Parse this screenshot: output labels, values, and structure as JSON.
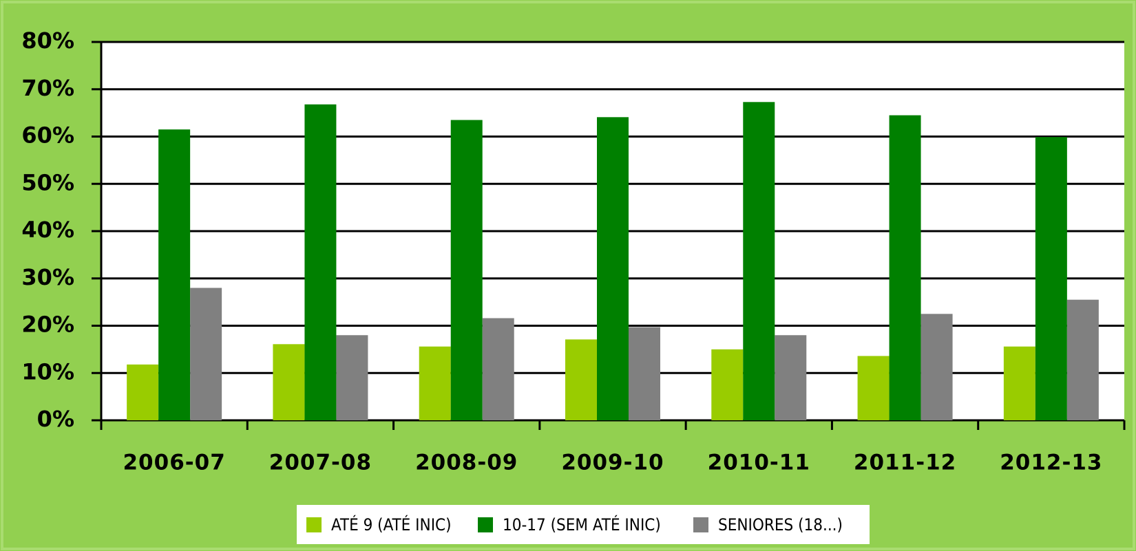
{
  "chart_data": {
    "type": "bar",
    "categories": [
      "2006-07",
      "2007-08",
      "2008-09",
      "2009-10",
      "2010-11",
      "2011-12",
      "2012-13"
    ],
    "series": [
      {
        "name": "ATÉ 9 (ATÉ INIC)",
        "color": "#99cc00",
        "values": [
          11.8,
          16.1,
          15.6,
          17.1,
          15.0,
          13.6,
          15.6
        ]
      },
      {
        "name": "10-17 (SEM ATÉ INIC)",
        "color": "#008000",
        "values": [
          61.5,
          66.8,
          63.5,
          64.1,
          67.3,
          64.5,
          59.9
        ]
      },
      {
        "name": "SENIORES (18...)",
        "color": "#808080",
        "values": [
          28.0,
          18.0,
          21.6,
          19.7,
          18.0,
          22.5,
          25.5
        ]
      }
    ],
    "ylim": [
      0,
      80
    ],
    "yticks": [
      {
        "value": 0,
        "label": "0%"
      },
      {
        "value": 10,
        "label": "10%"
      },
      {
        "value": 20,
        "label": "20%"
      },
      {
        "value": 30,
        "label": "30%"
      },
      {
        "value": 40,
        "label": "40%"
      },
      {
        "value": 50,
        "label": "50%"
      },
      {
        "value": 60,
        "label": "60%"
      },
      {
        "value": 70,
        "label": "70%"
      },
      {
        "value": 80,
        "label": "80%"
      }
    ],
    "grid": true,
    "legend": "bottom"
  }
}
